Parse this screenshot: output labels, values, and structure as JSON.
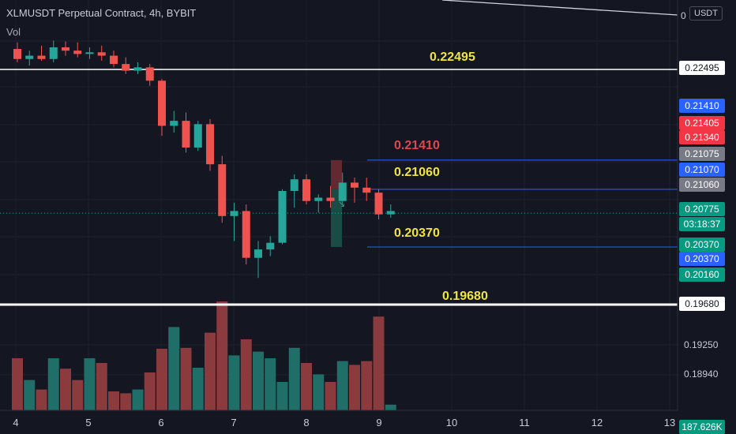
{
  "header": {
    "title": "XLMUSDT Perpetual Contract, 4h, BYBIT",
    "vol_label": "Vol"
  },
  "currency": "USDT",
  "top_axis_label": "0",
  "chart_data": {
    "type": "candlestick",
    "title": "XLMUSDT Perpetual Contract, 4h, BYBIT",
    "price_range": [
      0.1968,
      0.228
    ],
    "x_ticks": [
      "4",
      "5",
      "6",
      "7",
      "8",
      "9",
      "10",
      "11",
      "12",
      "13"
    ],
    "candles": [
      {
        "o": 0.2274,
        "h": 0.2282,
        "l": 0.2258,
        "c": 0.2262
      },
      {
        "o": 0.2262,
        "h": 0.2272,
        "l": 0.2254,
        "c": 0.2266
      },
      {
        "o": 0.2266,
        "h": 0.2278,
        "l": 0.226,
        "c": 0.2262
      },
      {
        "o": 0.2262,
        "h": 0.2284,
        "l": 0.2258,
        "c": 0.2276
      },
      {
        "o": 0.2276,
        "h": 0.2283,
        "l": 0.2266,
        "c": 0.2272
      },
      {
        "o": 0.2272,
        "h": 0.2282,
        "l": 0.2264,
        "c": 0.2268
      },
      {
        "o": 0.2268,
        "h": 0.2276,
        "l": 0.2262,
        "c": 0.227
      },
      {
        "o": 0.227,
        "h": 0.2278,
        "l": 0.226,
        "c": 0.2266
      },
      {
        "o": 0.2266,
        "h": 0.2272,
        "l": 0.2252,
        "c": 0.2256
      },
      {
        "o": 0.2256,
        "h": 0.2264,
        "l": 0.2244,
        "c": 0.2248
      },
      {
        "o": 0.2248,
        "h": 0.2258,
        "l": 0.2244,
        "c": 0.2252
      },
      {
        "o": 0.2252,
        "h": 0.2256,
        "l": 0.223,
        "c": 0.2236
      },
      {
        "o": 0.2236,
        "h": 0.2238,
        "l": 0.217,
        "c": 0.2182
      },
      {
        "o": 0.2182,
        "h": 0.22,
        "l": 0.2174,
        "c": 0.2188
      },
      {
        "o": 0.2188,
        "h": 0.2198,
        "l": 0.215,
        "c": 0.2156
      },
      {
        "o": 0.2156,
        "h": 0.2188,
        "l": 0.2152,
        "c": 0.2184
      },
      {
        "o": 0.2184,
        "h": 0.219,
        "l": 0.2128,
        "c": 0.2136
      },
      {
        "o": 0.2136,
        "h": 0.2146,
        "l": 0.2066,
        "c": 0.2074
      },
      {
        "o": 0.2074,
        "h": 0.209,
        "l": 0.2044,
        "c": 0.208
      },
      {
        "o": 0.208,
        "h": 0.2088,
        "l": 0.2016,
        "c": 0.2024
      },
      {
        "o": 0.2024,
        "h": 0.2044,
        "l": 0.2,
        "c": 0.2034
      },
      {
        "o": 0.2034,
        "h": 0.205,
        "l": 0.2026,
        "c": 0.2042
      },
      {
        "o": 0.2042,
        "h": 0.2106,
        "l": 0.204,
        "c": 0.2104
      },
      {
        "o": 0.2104,
        "h": 0.2124,
        "l": 0.2084,
        "c": 0.2118
      },
      {
        "o": 0.2118,
        "h": 0.2124,
        "l": 0.2088,
        "c": 0.2092
      },
      {
        "o": 0.2092,
        "h": 0.21,
        "l": 0.2078,
        "c": 0.2096
      },
      {
        "o": 0.2096,
        "h": 0.211,
        "l": 0.2084,
        "c": 0.2092
      },
      {
        "o": 0.2092,
        "h": 0.2126,
        "l": 0.2088,
        "c": 0.2114
      },
      {
        "o": 0.2114,
        "h": 0.212,
        "l": 0.209,
        "c": 0.2108
      },
      {
        "o": 0.2108,
        "h": 0.212,
        "l": 0.2092,
        "c": 0.2102
      },
      {
        "o": 0.2102,
        "h": 0.2106,
        "l": 0.207,
        "c": 0.2076
      },
      {
        "o": 0.2076,
        "h": 0.2088,
        "l": 0.2072,
        "c": 0.208
      }
    ],
    "volume": {
      "label": "Vol",
      "values": [
        0.55,
        0.32,
        0.22,
        0.55,
        0.44,
        0.32,
        0.55,
        0.5,
        0.2,
        0.18,
        0.22,
        0.4,
        0.65,
        0.88,
        0.66,
        0.45,
        0.82,
        1.15,
        0.58,
        0.75,
        0.62,
        0.55,
        0.3,
        0.66,
        0.5,
        0.38,
        0.3,
        0.52,
        0.48,
        0.52,
        0.99,
        0.06
      ],
      "current": "187.626K"
    },
    "horizontal_levels": [
      {
        "value": 0.22495,
        "label": "0.22495"
      },
      {
        "value": 0.2106,
        "label": "0.21060"
      },
      {
        "value": 0.2037,
        "label": "0.20370"
      },
      {
        "value": 0.1968,
        "label": "0.19680"
      }
    ],
    "position": {
      "stop": "0.21410",
      "entry": "0.21060",
      "target": "0.20370"
    },
    "annotations": [
      {
        "text": "0.22495",
        "color": "#f0e442"
      },
      {
        "text": "0.21410",
        "color": "#e0474c"
      },
      {
        "text": "0.21060",
        "color": "#f0e442"
      },
      {
        "text": "0.20370",
        "color": "#f0e442"
      },
      {
        "text": "0.19680",
        "color": "#f0e442"
      }
    ],
    "price_labels": [
      {
        "text": "0.22495",
        "bg": "#ffffff",
        "fg": "#131722"
      },
      {
        "text": "0.21410",
        "bg": "#2962ff",
        "fg": "#ffffff"
      },
      {
        "text": "0.21405",
        "bg": "#f23645",
        "fg": "#ffffff"
      },
      {
        "text": "0.21340",
        "bg": "#f23645",
        "fg": "#ffffff"
      },
      {
        "text": "0.21075",
        "bg": "#787b86",
        "fg": "#ffffff"
      },
      {
        "text": "0.21070",
        "bg": "#2962ff",
        "fg": "#ffffff"
      },
      {
        "text": "0.21060",
        "bg": "#787b86",
        "fg": "#ffffff"
      },
      {
        "text": "0.20775",
        "bg": "#089981",
        "fg": "#ffffff"
      },
      {
        "text": "03:18:37",
        "bg": "#089981",
        "fg": "#ffffff"
      },
      {
        "text": "0.20370",
        "bg": "#089981",
        "fg": "#ffffff"
      },
      {
        "text": "0.20370",
        "bg": "#2962ff",
        "fg": "#ffffff"
      },
      {
        "text": "0.20160",
        "bg": "#089981",
        "fg": "#ffffff"
      },
      {
        "text": "0.19680",
        "bg": "#ffffff",
        "fg": "#131722"
      },
      {
        "text": "187.626K",
        "bg": "#089981",
        "fg": "#ffffff"
      }
    ],
    "axis_ticks": [
      "0.19250",
      "0.18940"
    ],
    "colors": {
      "up": "#26a69a",
      "down": "#ef5350",
      "vol_up": "#1f6f68",
      "vol_down": "#8b3a3d",
      "level": "#ffffff",
      "position_line": "#2962ff"
    }
  }
}
